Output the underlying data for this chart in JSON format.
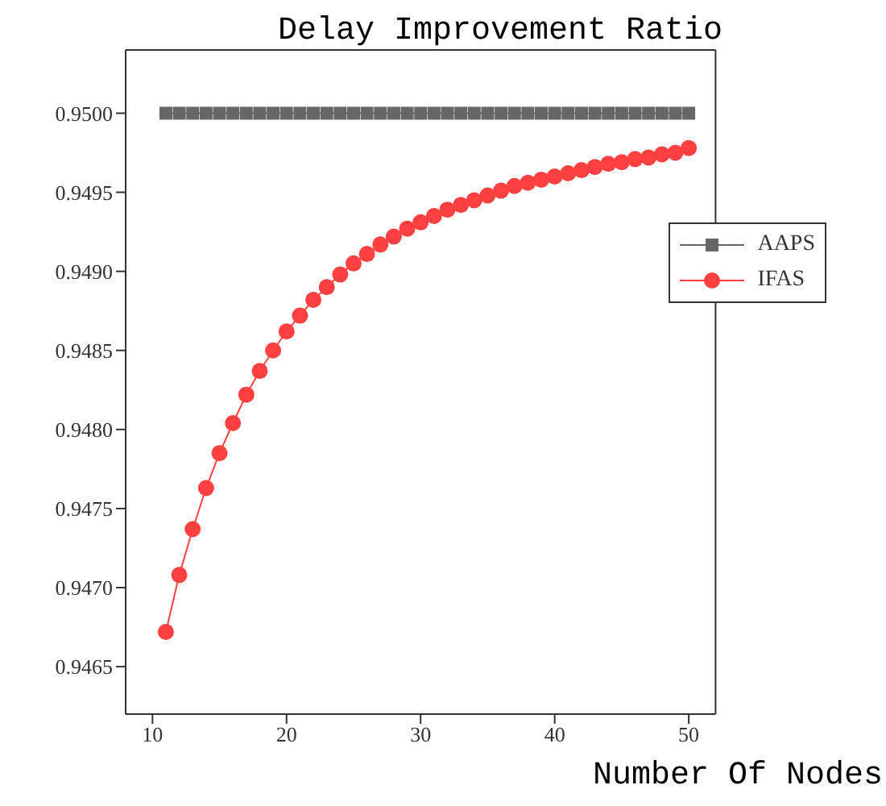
{
  "chart_data": {
    "type": "line",
    "title": "Delay Improvement Ratio",
    "xlabel": "Number Of Nodes",
    "x": [
      11,
      12,
      13,
      14,
      15,
      16,
      17,
      18,
      19,
      20,
      21,
      22,
      23,
      24,
      25,
      26,
      27,
      28,
      29,
      30,
      31,
      32,
      33,
      34,
      35,
      36,
      37,
      38,
      39,
      40,
      41,
      42,
      43,
      44,
      45,
      46,
      47,
      48,
      49,
      50
    ],
    "series": [
      {
        "name": "AAPS",
        "color": "#666666",
        "marker": "square",
        "values": [
          0.95,
          0.95,
          0.95,
          0.95,
          0.95,
          0.95,
          0.95,
          0.95,
          0.95,
          0.95,
          0.95,
          0.95,
          0.95,
          0.95,
          0.95,
          0.95,
          0.95,
          0.95,
          0.95,
          0.95,
          0.95,
          0.95,
          0.95,
          0.95,
          0.95,
          0.95,
          0.95,
          0.95,
          0.95,
          0.95,
          0.95,
          0.95,
          0.95,
          0.95,
          0.95,
          0.95,
          0.95,
          0.95,
          0.95,
          0.95
        ]
      },
      {
        "name": "IFAS",
        "color": "#ff4040",
        "marker": "circle",
        "values": [
          0.94672,
          0.94708,
          0.94737,
          0.94763,
          0.94785,
          0.94804,
          0.94822,
          0.94837,
          0.9485,
          0.94862,
          0.94872,
          0.94882,
          0.9489,
          0.94898,
          0.94905,
          0.94911,
          0.94917,
          0.94922,
          0.94927,
          0.94931,
          0.94935,
          0.94939,
          0.94942,
          0.94945,
          0.94948,
          0.94951,
          0.94954,
          0.94956,
          0.94958,
          0.9496,
          0.94962,
          0.94964,
          0.94966,
          0.94968,
          0.94969,
          0.94971,
          0.94972,
          0.94974,
          0.94975,
          0.94978
        ]
      }
    ],
    "xlim": [
      8,
      52
    ],
    "xticks": [
      10,
      20,
      30,
      40,
      50
    ],
    "ylim": [
      0.9462,
      0.9504
    ],
    "yticks": [
      0.9465,
      {
        "value": 0.947,
        "label": "0.9470"
      },
      0.9475,
      {
        "value": 0.948,
        "label": "0.9480"
      },
      0.9485,
      {
        "value": 0.949,
        "label": "0.9490"
      },
      0.9495,
      {
        "value": 0.95,
        "label": "0.9500"
      }
    ],
    "grid": false,
    "legend": "top right"
  }
}
